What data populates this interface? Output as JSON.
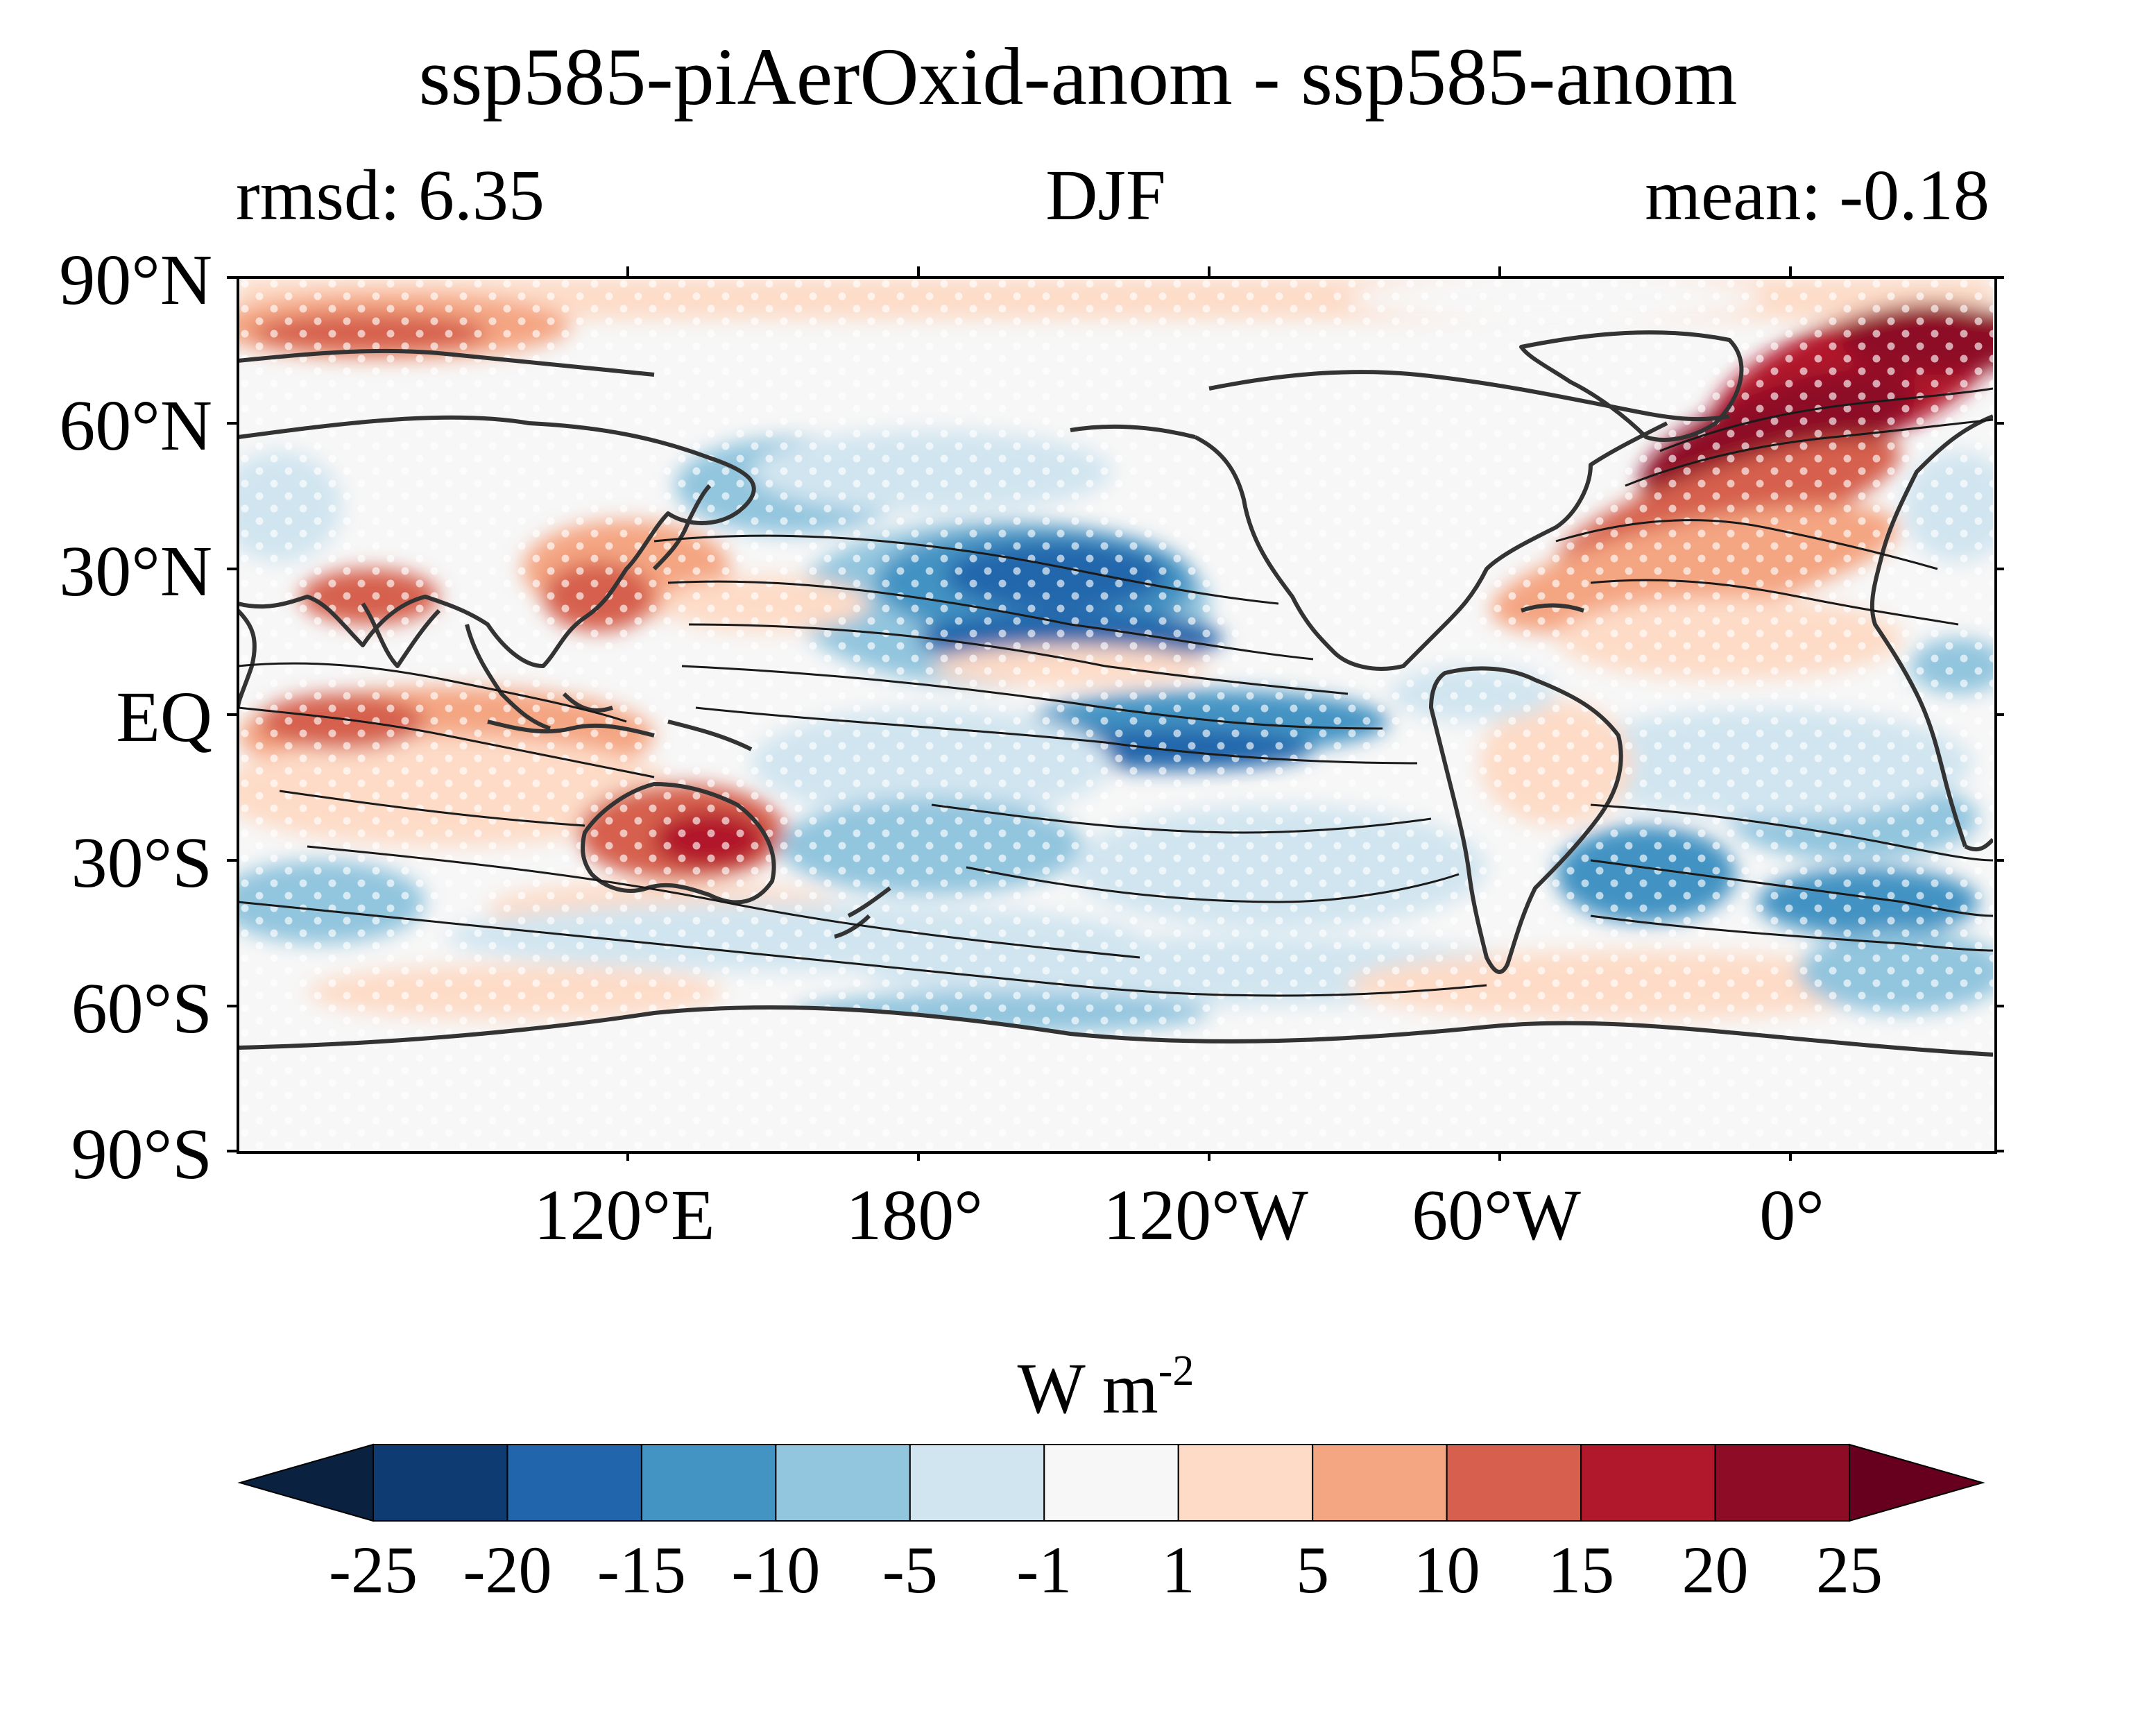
{
  "title": "ssp585-piAerOxid-anom - ssp585-anom",
  "stats": {
    "left": "rmsd: 6.35",
    "center": "DJF",
    "right": "mean: -0.18"
  },
  "axes": {
    "lat_labels": [
      "90°N",
      "60°N",
      "30°N",
      "EQ",
      "30°S",
      "60°S",
      "90°S"
    ],
    "lon_labels": [
      "120°E",
      "180°",
      "120°W",
      "60°W",
      "0°"
    ]
  },
  "colorbar": {
    "unit_base": "W m",
    "unit_exp": "-2",
    "ticks": [
      "-25",
      "-20",
      "-15",
      "-10",
      "-5",
      "-1",
      "1",
      "5",
      "10",
      "15",
      "20",
      "25"
    ],
    "colors": [
      "#0b2140",
      "#0e3b72",
      "#2166ac",
      "#4393c3",
      "#92c5de",
      "#d1e5f0",
      "#f7f7f7",
      "#fddbc7",
      "#f4a582",
      "#d6604d",
      "#b2182b",
      "#8e0c25",
      "#67001f"
    ]
  }
}
